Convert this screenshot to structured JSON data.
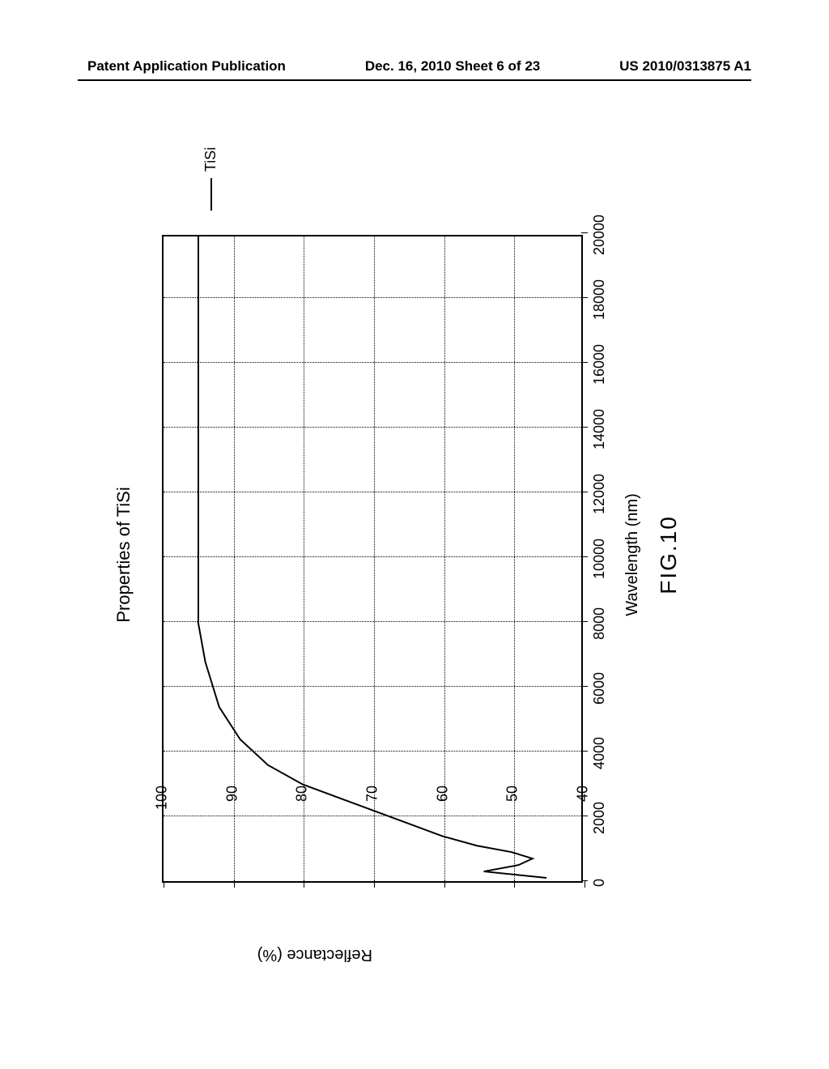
{
  "header": {
    "left": "Patent Application Publication",
    "center": "Dec. 16, 2010  Sheet 6 of 23",
    "right": "US 2010/0313875 A1"
  },
  "chart": {
    "type": "line",
    "title": "Properties of TiSi",
    "xlabel": "Wavelength (nm)",
    "ylabel": "Reflectance (%)",
    "figure_caption": "FIG.10",
    "legend_label": "TiSi",
    "xlim": [
      0,
      20000
    ],
    "ylim": [
      40,
      100
    ],
    "xticks": [
      0,
      2000,
      4000,
      6000,
      8000,
      10000,
      12000,
      14000,
      16000,
      18000,
      20000
    ],
    "yticks": [
      40,
      50,
      60,
      70,
      80,
      90,
      100
    ],
    "grid_color": "#000000",
    "line_color": "#000000",
    "line_width": 2,
    "background_color": "#ffffff",
    "tick_fontsize": 18,
    "label_fontsize": 20,
    "title_fontsize": 22,
    "series": {
      "x": [
        100,
        300,
        500,
        700,
        900,
        1100,
        1400,
        1800,
        2200,
        2600,
        3000,
        3600,
        4400,
        5400,
        6800,
        8000,
        10000,
        12000,
        14000,
        16000,
        18000,
        20000
      ],
      "y": [
        45,
        54,
        49,
        47,
        50,
        55,
        60,
        65,
        70,
        75,
        80,
        85,
        89,
        92,
        94,
        95,
        95,
        95,
        95,
        95,
        95,
        95
      ]
    }
  }
}
